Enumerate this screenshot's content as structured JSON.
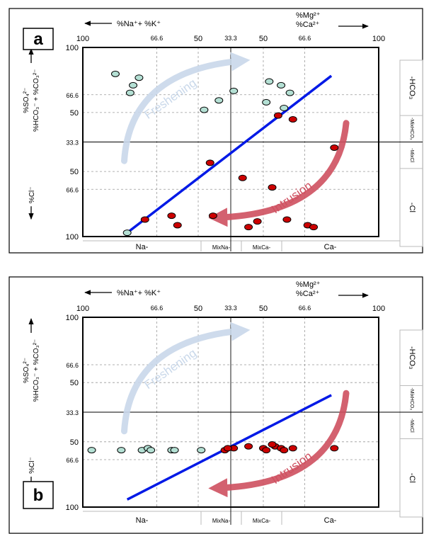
{
  "chart_data": [
    {
      "type": "scatter",
      "panel_label": "a",
      "top_axis": {
        "left_label": "%Na⁺+ %K⁺",
        "right_label_line1": "%Mg²⁺",
        "right_label_line2": "%Ca²⁺",
        "ticks": [
          "100",
          "66.6",
          "50",
          "33.3",
          "50",
          "66.6",
          "100"
        ]
      },
      "left_axis": {
        "upper_label_line1": "%SO₄²⁻",
        "upper_label_line2": "%HCO₃⁻ + %CO₃²⁻",
        "lower_label": "%Cl⁻",
        "ticks": [
          "100",
          "66.6",
          "50",
          "33.3",
          "50",
          "66.6",
          "100"
        ]
      },
      "bottom_zones": [
        "Na-",
        "MixNa-",
        "MixCa-",
        "Ca-"
      ],
      "right_zones": [
        "-HCO₃",
        "-MixHCO₃",
        "-MixCl",
        "-Cl"
      ],
      "annotations": [
        "Freshening",
        "Intrusion"
      ],
      "x_range": [
        0,
        100
      ],
      "y_range": [
        0,
        100
      ],
      "trend_line": [
        [
          15,
          2
        ],
        [
          84,
          85
        ]
      ],
      "series": [
        {
          "color": "#b4e0d4",
          "points": [
            [
              11,
              86
            ],
            [
              16,
              76
            ],
            [
              17,
              80
            ],
            [
              19,
              84
            ],
            [
              41,
              67
            ],
            [
              46,
              72
            ],
            [
              51,
              77
            ],
            [
              62,
              71
            ],
            [
              63,
              82
            ],
            [
              67,
              80
            ],
            [
              68,
              68
            ],
            [
              70,
              76
            ],
            [
              15,
              2
            ]
          ]
        },
        {
          "color": "#cc0000",
          "points": [
            [
              43,
              39
            ],
            [
              54,
              31
            ],
            [
              64,
              26
            ],
            [
              71,
              62
            ],
            [
              66,
              64
            ],
            [
              85,
              47
            ],
            [
              21,
              9
            ],
            [
              30,
              11
            ],
            [
              44,
              11
            ],
            [
              59,
              8
            ],
            [
              69,
              9
            ],
            [
              56,
              5
            ],
            [
              76,
              6
            ],
            [
              78,
              5
            ],
            [
              32,
              6
            ]
          ]
        }
      ]
    },
    {
      "type": "scatter",
      "panel_label": "b",
      "top_axis": {
        "left_label": "%Na⁺+ %K⁺",
        "right_label_line1": "%Mg²⁺",
        "right_label_line2": "%Ca²⁺",
        "ticks": [
          "100",
          "66.6",
          "50",
          "33.3",
          "50",
          "66.6",
          "100"
        ]
      },
      "left_axis": {
        "upper_label_line1": "%SO₄²⁻",
        "upper_label_line2": "%HCO₃⁻ + %CO₃²⁻",
        "lower_label": "%Cl⁻",
        "ticks": [
          "100",
          "66.6",
          "50",
          "33.3",
          "50",
          "66.6",
          "100"
        ]
      },
      "bottom_zones": [
        "Na-",
        "MixNa-",
        "MixCa-",
        "Ca-"
      ],
      "right_zones": [
        "-HCO₃",
        "-MixHCO₃",
        "-MixCl",
        "-Cl"
      ],
      "annotations": [
        "Freshening",
        "Intrusion"
      ],
      "x_range": [
        0,
        100
      ],
      "y_range": [
        0,
        100
      ],
      "trend_line": [
        [
          15,
          4
        ],
        [
          84,
          59
        ]
      ],
      "series": [
        {
          "color": "#b4e0d4",
          "points": [
            [
              3,
              30
            ],
            [
              13,
              30
            ],
            [
              20,
              30
            ],
            [
              22,
              31
            ],
            [
              23,
              30
            ],
            [
              30,
              30
            ],
            [
              31,
              30
            ],
            [
              40,
              30
            ]
          ]
        },
        {
          "color": "#cc0000",
          "points": [
            [
              48,
              30
            ],
            [
              51,
              31
            ],
            [
              56,
              32
            ],
            [
              61,
              31
            ],
            [
              65,
              32
            ],
            [
              67,
              31
            ],
            [
              68,
              30
            ],
            [
              71,
              31
            ],
            [
              85,
              31
            ],
            [
              49,
              31
            ],
            [
              64,
              33
            ],
            [
              62,
              30
            ]
          ]
        }
      ]
    }
  ]
}
